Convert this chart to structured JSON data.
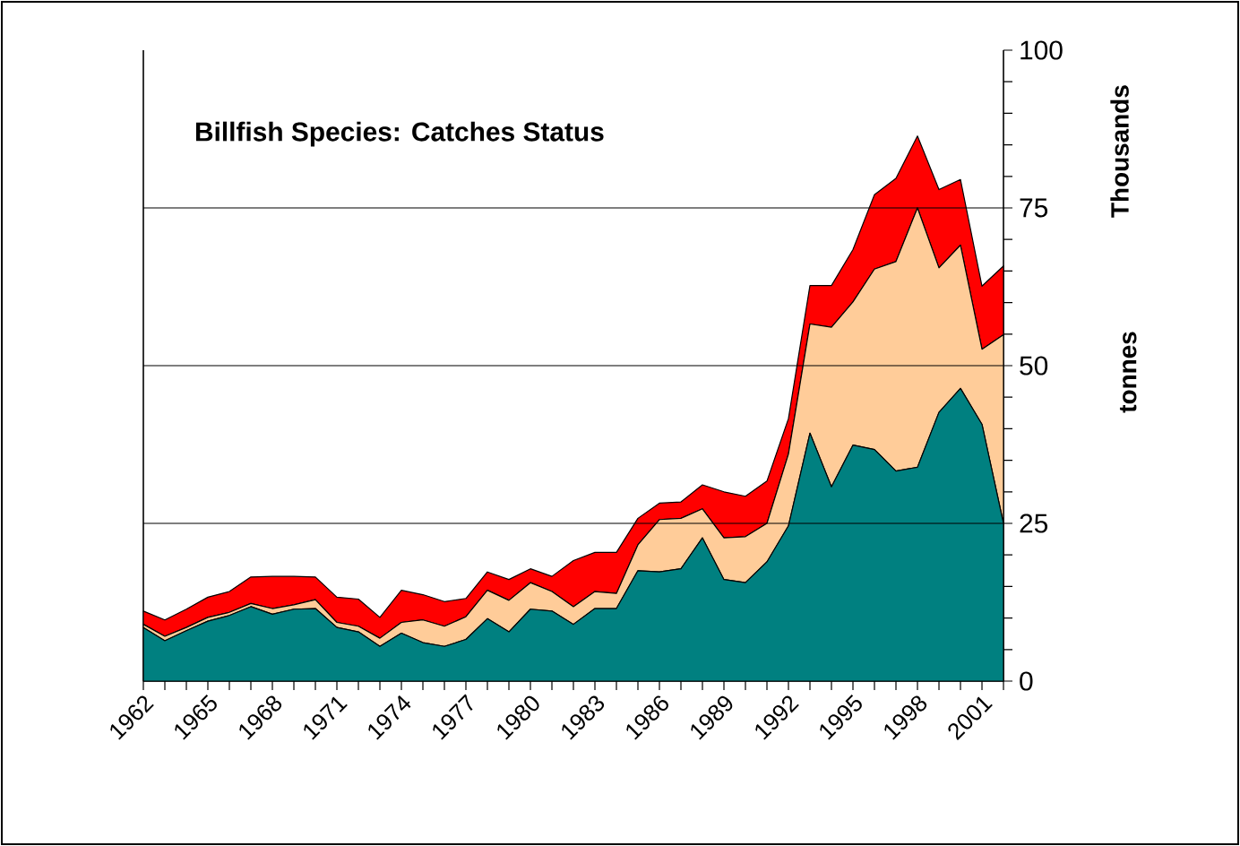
{
  "chart_data": {
    "type": "area",
    "stacked": true,
    "title": "Billfish Species: Catches Status",
    "ylabel": "tonnes",
    "annotations": [
      "Thousands"
    ],
    "categories": [
      "1962",
      null,
      null,
      "1965",
      null,
      null,
      "1968",
      null,
      null,
      "1971",
      null,
      null,
      "1974",
      null,
      null,
      "1977",
      null,
      null,
      "1980",
      null,
      null,
      "1983",
      null,
      null,
      "1986",
      null,
      null,
      "1989",
      null,
      null,
      "1992",
      null,
      null,
      "1995",
      null,
      null,
      "1998",
      null,
      null,
      "2001",
      null
    ],
    "series": [
      {
        "color": "#008080",
        "values": [
          8.5,
          6.4,
          8.0,
          9.5,
          10.4,
          11.8,
          10.6,
          11.4,
          11.5,
          8.5,
          7.8,
          5.5,
          7.6,
          6.1,
          5.5,
          6.6,
          9.9,
          7.8,
          11.4,
          11.1,
          9.0,
          11.5,
          11.5,
          17.5,
          17.3,
          17.8,
          22.7,
          16.1,
          15.6,
          18.9,
          24.6,
          39.3,
          30.8,
          37.4,
          36.7,
          33.3,
          33.9,
          42.6,
          46.4,
          40.7,
          25.0
        ]
      },
      {
        "color": "#ffcc99",
        "values": [
          0.5,
          0.7,
          0.5,
          0.6,
          0.5,
          0.5,
          0.9,
          0.7,
          1.4,
          0.8,
          0.9,
          1.3,
          1.7,
          3.6,
          3.2,
          3.6,
          4.5,
          5.0,
          4.2,
          3.1,
          2.8,
          2.7,
          2.4,
          4.1,
          8.3,
          8.0,
          4.6,
          6.6,
          7.3,
          6.1,
          11.4,
          17.3,
          25.3,
          22.7,
          28.6,
          33.2,
          41.1,
          22.9,
          22.7,
          11.9,
          29.9
        ]
      },
      {
        "color": "#ff0000",
        "values": [
          2.1,
          2.6,
          2.9,
          3.2,
          3.3,
          4.2,
          5.1,
          4.5,
          3.6,
          4.0,
          4.3,
          3.3,
          5.1,
          4.0,
          3.9,
          2.9,
          2.9,
          3.3,
          2.2,
          2.4,
          7.3,
          6.2,
          6.5,
          4.2,
          2.6,
          2.6,
          3.8,
          7.3,
          6.4,
          6.7,
          5.6,
          6.1,
          6.6,
          8.3,
          11.8,
          13.2,
          11.4,
          12.4,
          10.4,
          10.0,
          10.9
        ]
      }
    ],
    "ylim": [
      0,
      100
    ],
    "yticks": [
      0,
      {
        "value": 5,
        "label": null
      },
      {
        "value": 10,
        "label": null
      },
      {
        "value": 15,
        "label": null
      },
      {
        "value": 20,
        "label": null
      },
      25,
      {
        "value": 30,
        "label": null
      },
      {
        "value": 35,
        "label": null
      },
      {
        "value": 40,
        "label": null
      },
      {
        "value": 45,
        "label": null
      },
      50,
      {
        "value": 55,
        "label": null
      },
      {
        "value": 60,
        "label": null
      },
      {
        "value": 65,
        "label": null
      },
      {
        "value": 70,
        "label": null
      },
      75,
      {
        "value": 80,
        "label": null
      },
      {
        "value": 85,
        "label": null
      },
      {
        "value": 90,
        "label": null
      },
      {
        "value": 95,
        "label": null
      },
      100
    ],
    "grid": "y"
  }
}
